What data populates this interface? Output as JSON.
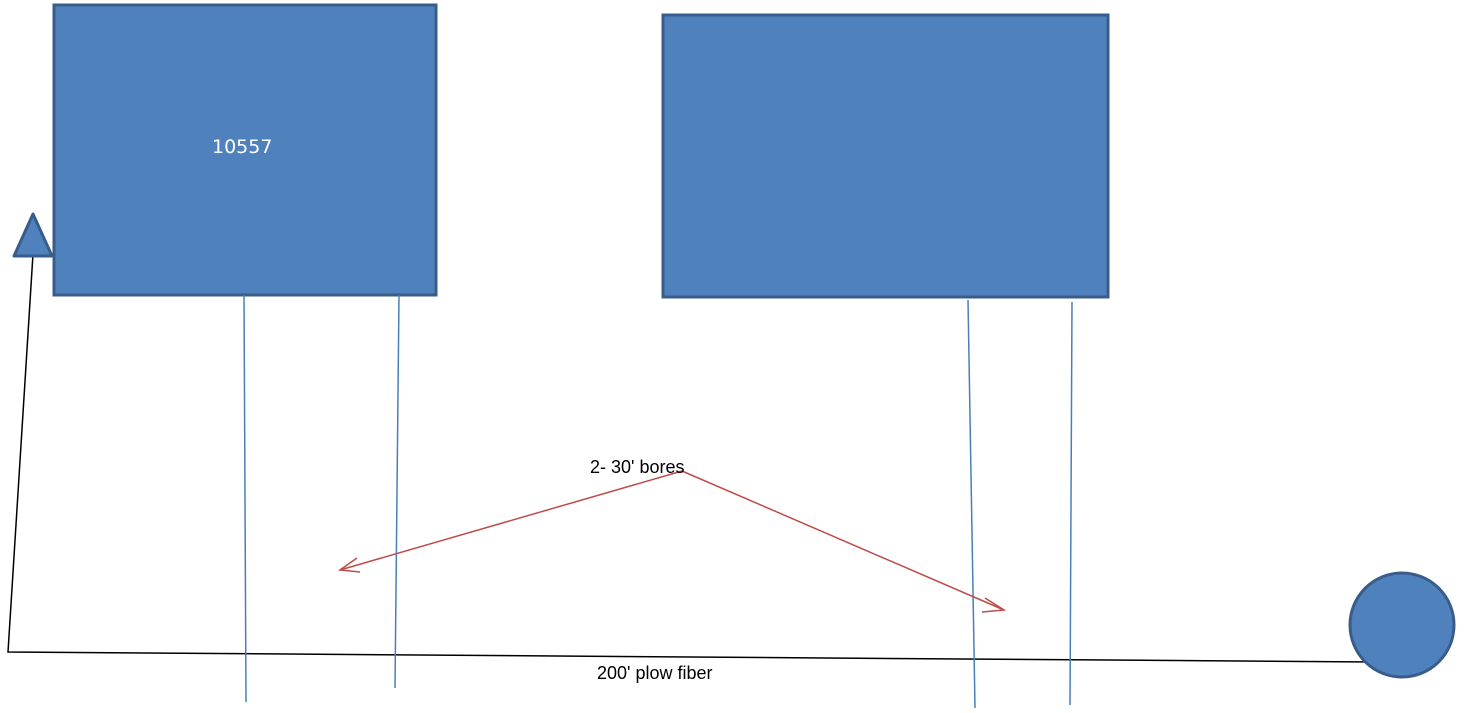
{
  "labels": {
    "building_left_number": "10557",
    "bores_note": "2- 30' bores",
    "plow_note": "200' plow fiber"
  },
  "colors": {
    "shape_fill": "#4f81bd",
    "shape_stroke": "#385d8a",
    "bore_line": "#4a7ebb",
    "arrow": "#be4b48",
    "fiber_line": "#000000",
    "background": "#ffffff"
  },
  "shapes": {
    "building_left": "rectangle",
    "building_right": "rectangle",
    "start_marker": "triangle",
    "end_marker": "circle"
  }
}
